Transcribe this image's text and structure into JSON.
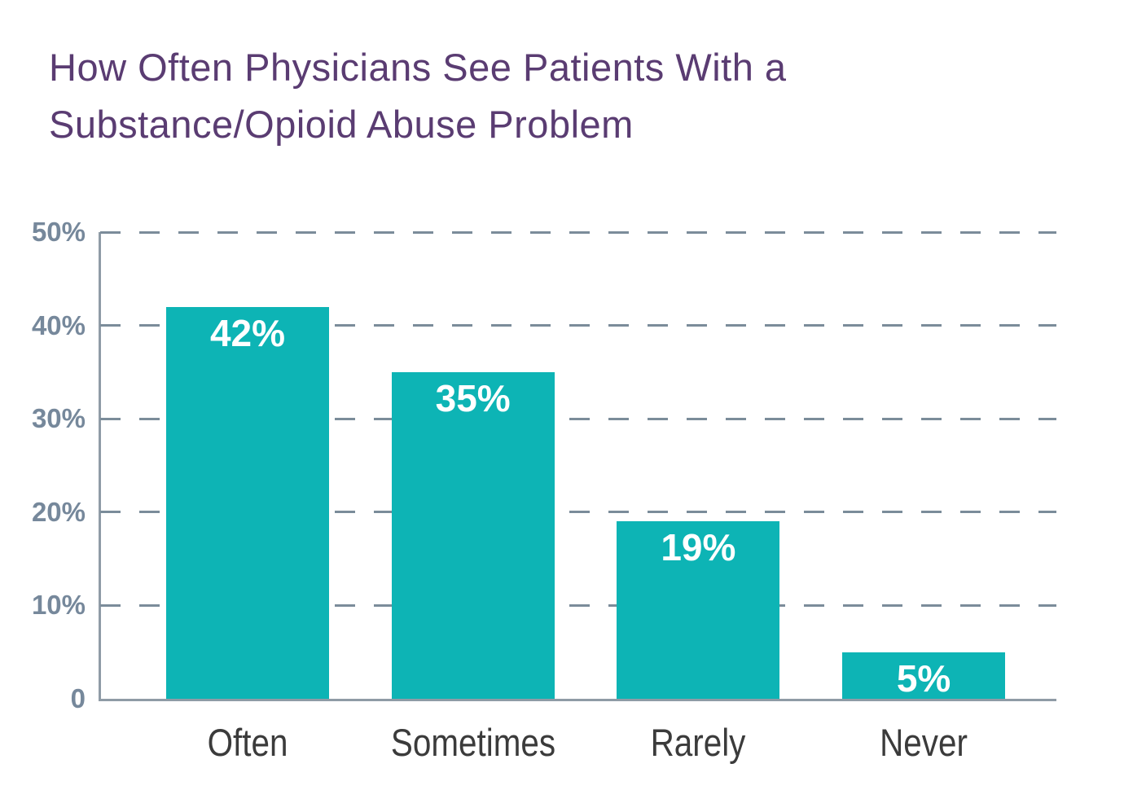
{
  "header": {
    "title_line1": "How Often Physicians See Patients With a",
    "title_line2": "Substance/Opioid Abuse Problem"
  },
  "chart_data": {
    "type": "bar",
    "title": "How Often Physicians See Patients With a Substance/Opioid Abuse Problem",
    "categories": [
      "Often",
      "Sometimes",
      "Rarely",
      "Never"
    ],
    "values": [
      42,
      35,
      19,
      5
    ],
    "value_labels": [
      "42%",
      "35%",
      "19%",
      "5%"
    ],
    "xlabel": "",
    "ylabel": "",
    "ylim": [
      0,
      50
    ],
    "y_ticks": [
      {
        "label": "50%",
        "value": 50
      },
      {
        "label": "40%",
        "value": 40
      },
      {
        "label": "30%",
        "value": 30
      },
      {
        "label": "20%",
        "value": 20
      },
      {
        "label": "10%",
        "value": 10
      },
      {
        "label": "0",
        "value": 0
      }
    ],
    "grid": "horizontal dashed",
    "legend": "none",
    "colors": {
      "bar": "#0db4b5",
      "title": "#5a3c72",
      "y_tick_label": "#76889b",
      "gridline": "#7b8c9a",
      "axis_line": "#8f9ba6",
      "category_label": "#3b3b3b",
      "value_label": "#ffffff",
      "background": "#ffffff"
    }
  }
}
